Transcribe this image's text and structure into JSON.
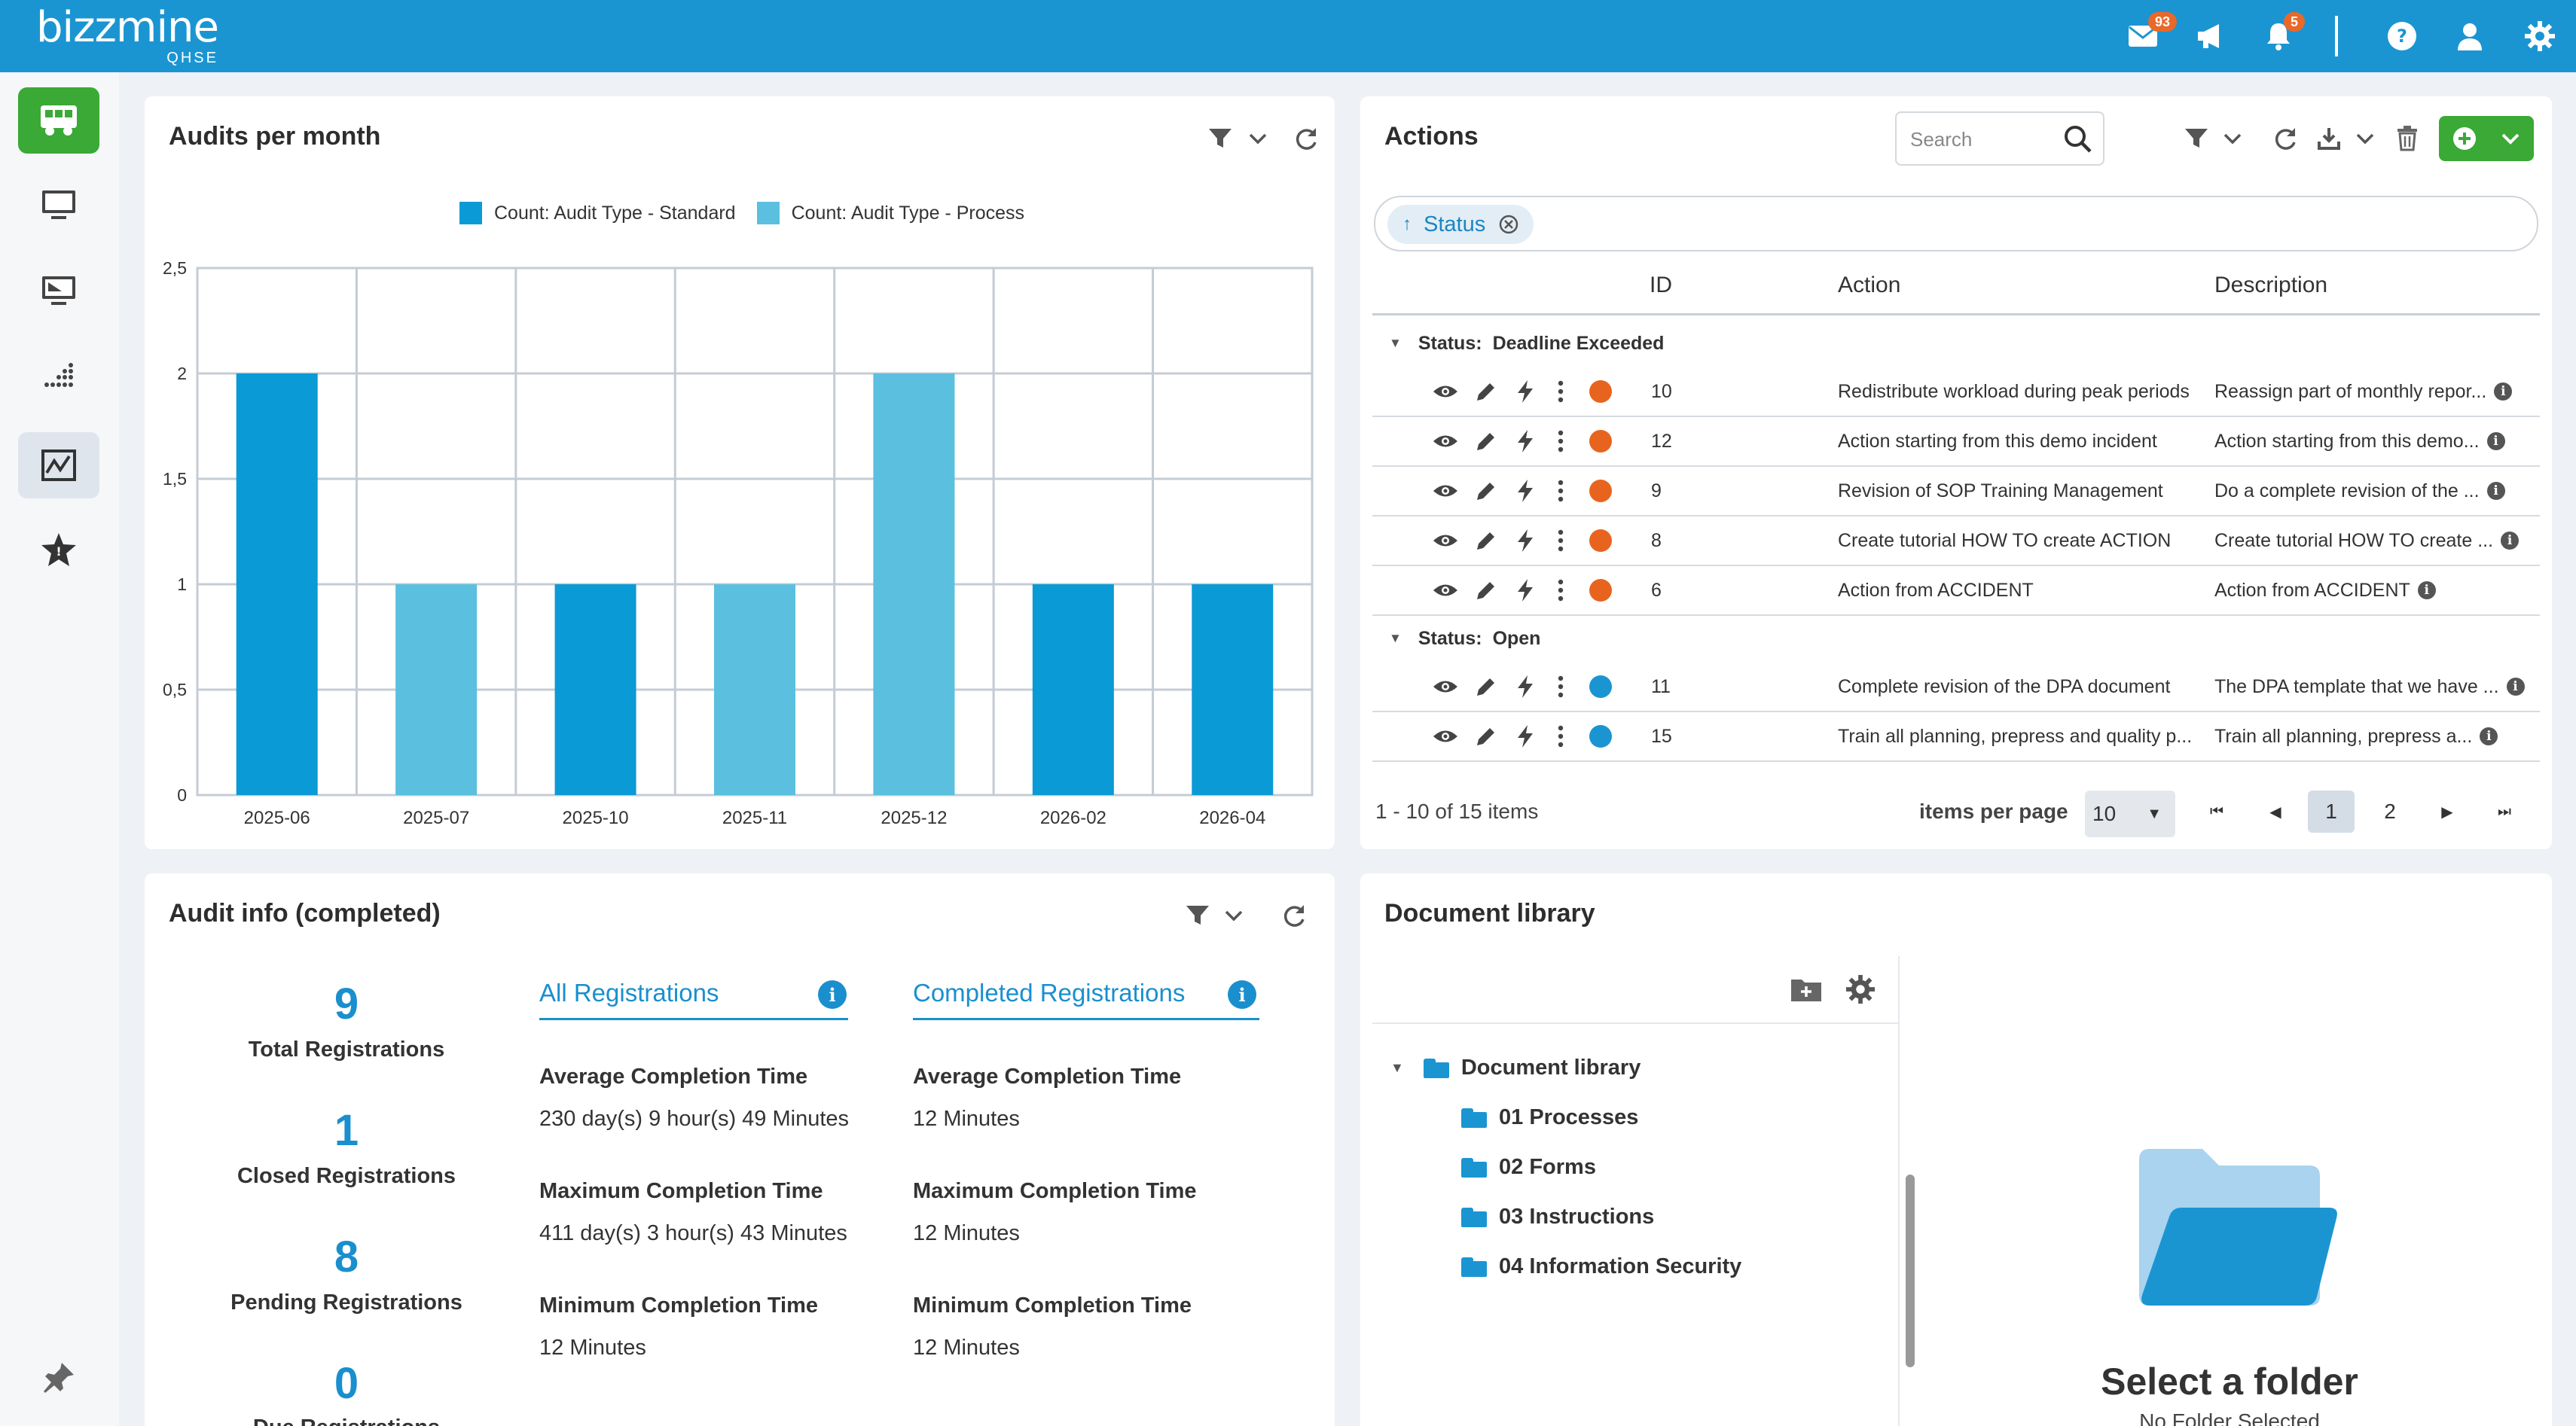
{
  "app": {
    "logo_main": "bizzmine",
    "logo_sub": "QHSE",
    "mail_badge": "93",
    "bell_badge": "5"
  },
  "audits_chart": {
    "title": "Audits per month",
    "chart_data": {
      "type": "bar",
      "categories": [
        "2025-06",
        "2025-07",
        "2025-10",
        "2025-11",
        "2025-12",
        "2026-02",
        "2026-04"
      ],
      "series": [
        {
          "name": "Count: Audit Type - Standard",
          "color": "#0a9ad6",
          "values": [
            2,
            0,
            1,
            0,
            0,
            1,
            1
          ]
        },
        {
          "name": "Count: Audit Type - Process",
          "color": "#5bbfdf",
          "values": [
            0,
            1,
            0,
            1,
            2,
            0,
            0
          ]
        }
      ],
      "y_ticks": [
        "0",
        "0,5",
        "1",
        "1,5",
        "2",
        "2,5"
      ],
      "ylim": [
        0,
        2.5
      ],
      "grid": true,
      "legend": "top-center"
    }
  },
  "actions": {
    "title": "Actions",
    "search_placeholder": "Search",
    "filter_chip": "Status",
    "columns": {
      "id": "ID",
      "action": "Action",
      "description": "Description"
    },
    "group_prefix": "Status:",
    "groups": [
      {
        "name": "Deadline Exceeded",
        "color": "#e8641e",
        "rows": [
          {
            "id": "10",
            "action": "Redistribute workload during peak periods",
            "description": "Reassign part of monthly repor..."
          },
          {
            "id": "12",
            "action": "Action starting from this demo incident",
            "description": "Action starting from this demo..."
          },
          {
            "id": "9",
            "action": "Revision of SOP Training Management",
            "description": "Do a complete revision of the ..."
          },
          {
            "id": "8",
            "action": "Create tutorial HOW TO create ACTION",
            "description": "Create tutorial HOW TO create ..."
          },
          {
            "id": "6",
            "action": "Action from ACCIDENT",
            "description": "Action from ACCIDENT"
          }
        ]
      },
      {
        "name": "Open",
        "color": "#1a95d2",
        "rows": [
          {
            "id": "11",
            "action": "Complete revision of the DPA document",
            "description": "The DPA template that we have ..."
          },
          {
            "id": "15",
            "action": "Train all planning, prepress and quality p...",
            "description": "Train all planning, prepress a..."
          }
        ]
      }
    ],
    "pager": {
      "summary": "1 - 10 of 15 items",
      "per_page_label": "items per page",
      "per_page_value": "10",
      "pages": [
        "1",
        "2"
      ],
      "current_page": "1"
    }
  },
  "audit_info": {
    "title": "Audit info (completed)",
    "stats": [
      {
        "value": "9",
        "label": "Total Registrations"
      },
      {
        "value": "1",
        "label": "Closed Registrations"
      },
      {
        "value": "8",
        "label": "Pending Registrations"
      },
      {
        "value": "0",
        "label": "Due Registrations"
      }
    ],
    "all": {
      "heading": "All Registrations",
      "avg_label": "Average Completion Time",
      "avg_value": "230 day(s) 9 hour(s) 49 Minutes",
      "max_label": "Maximum Completion Time",
      "max_value": "411 day(s) 3 hour(s) 43 Minutes",
      "min_label": "Minimum Completion Time",
      "min_value": "12 Minutes"
    },
    "completed": {
      "heading": "Completed Registrations",
      "avg_label": "Average Completion Time",
      "avg_value": "12 Minutes",
      "max_label": "Maximum Completion Time",
      "max_value": "12 Minutes",
      "min_label": "Minimum Completion Time",
      "min_value": "12 Minutes"
    }
  },
  "doc_library": {
    "title": "Document library",
    "root": "Document library",
    "folders": [
      "01 Processes",
      "02 Forms",
      "03 Instructions",
      "04 Information Security"
    ],
    "empty_title": "Select a folder",
    "empty_sub": "No Folder Selected"
  }
}
